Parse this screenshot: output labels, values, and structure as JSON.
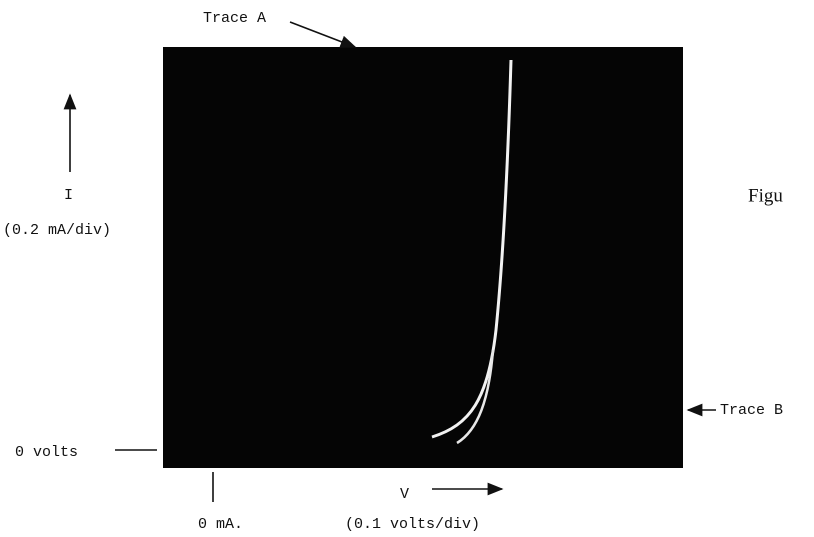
{
  "labels": {
    "trace_a": "Trace A",
    "trace_b": "Trace B",
    "y_symbol": "I",
    "y_scale": "(0.2 mA/div)",
    "x_symbol": "V",
    "x_scale": "(0.1 volts/div)",
    "zero_volts": "0 volts",
    "zero_ma": "0 mA.",
    "figure": "Figu"
  }
}
